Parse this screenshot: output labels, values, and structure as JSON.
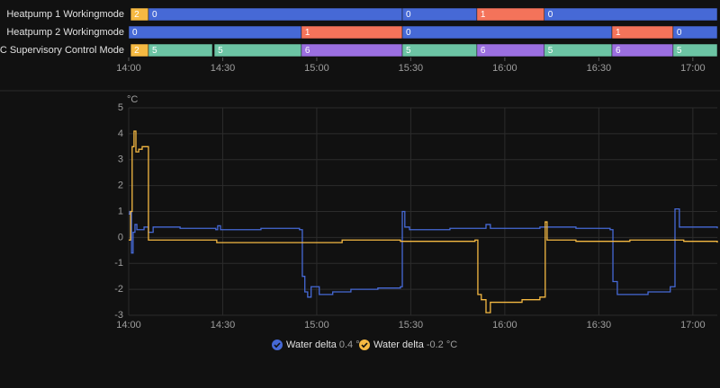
{
  "chart_data": [
    {
      "type": "timeline",
      "xlim": [
        0,
        187.8
      ],
      "xticks": [
        {
          "value": 0,
          "label": "14:00"
        },
        {
          "value": 30,
          "label": "14:30"
        },
        {
          "value": 60,
          "label": "15:00"
        },
        {
          "value": 90,
          "label": "15:30"
        },
        {
          "value": 120,
          "label": "16:00"
        },
        {
          "value": 150,
          "label": "16:30"
        },
        {
          "value": 180,
          "label": "17:00"
        }
      ],
      "rows": [
        {
          "label": "Heatpump 1 Workingmode",
          "segments": [
            {
              "state": "2",
              "start": 0.6,
              "end": 6.3,
              "color": "#f5b942"
            },
            {
              "state": "0",
              "start": 6.3,
              "end": 87.3,
              "color": "#4669d6"
            },
            {
              "state": "0",
              "start": 87.3,
              "end": 111.1,
              "color": "#4669d6"
            },
            {
              "state": "1",
              "start": 111.1,
              "end": 132.6,
              "color": "#f4735a"
            },
            {
              "state": "0",
              "start": 132.6,
              "end": 187.8,
              "color": "#4669d6"
            }
          ]
        },
        {
          "label": "Heatpump 2 Workingmode",
          "segments": [
            {
              "state": "0",
              "start": 0,
              "end": 55.1,
              "color": "#4669d6"
            },
            {
              "state": "1",
              "start": 55.1,
              "end": 87.3,
              "color": "#f4735a"
            },
            {
              "state": "0",
              "start": 87.3,
              "end": 154.2,
              "color": "#4669d6"
            },
            {
              "state": "1",
              "start": 154.2,
              "end": 173.7,
              "color": "#f4735a"
            },
            {
              "state": "0",
              "start": 173.7,
              "end": 187.8,
              "color": "#4669d6"
            }
          ]
        },
        {
          "label": "CIC QC Supervisory Control Mode",
          "segments": [
            {
              "state": "2",
              "start": 0.6,
              "end": 6.3,
              "color": "#f5b942"
            },
            {
              "state": "5",
              "start": 6.3,
              "end": 26.7,
              "color": "#6cc4a4"
            },
            {
              "state": "5",
              "start": 27.3,
              "end": 55.1,
              "color": "#6cc4a4"
            },
            {
              "state": "6",
              "start": 55.1,
              "end": 87.3,
              "color": "#9b6fe0"
            },
            {
              "state": "5",
              "start": 87.3,
              "end": 111.1,
              "color": "#6cc4a4"
            },
            {
              "state": "6",
              "start": 111.1,
              "end": 132.6,
              "color": "#9b6fe0"
            },
            {
              "state": "5",
              "start": 132.6,
              "end": 154.2,
              "color": "#6cc4a4"
            },
            {
              "state": "6",
              "start": 154.2,
              "end": 173.7,
              "color": "#9b6fe0"
            },
            {
              "state": "5",
              "start": 173.7,
              "end": 187.8,
              "color": "#6cc4a4"
            }
          ]
        }
      ]
    },
    {
      "type": "line",
      "y_unit": "°C",
      "xlim": [
        0,
        187.8
      ],
      "ylim": [
        -3,
        5
      ],
      "yticks": [
        -3,
        -2,
        -1,
        0,
        1,
        2,
        3,
        4,
        5
      ],
      "xticks": [
        {
          "value": 0,
          "label": "14:00"
        },
        {
          "value": 30,
          "label": "14:30"
        },
        {
          "value": 60,
          "label": "15:00"
        },
        {
          "value": 90,
          "label": "15:30"
        },
        {
          "value": 120,
          "label": "16:00"
        },
        {
          "value": 150,
          "label": "16:30"
        },
        {
          "value": 180,
          "label": "17:00"
        }
      ],
      "grid": true,
      "series": [
        {
          "name": "Water delta",
          "legend_value": "0.4 °C",
          "color": "#4669d6",
          "x": [
            0,
            0.3,
            0.9,
            1.4,
            2.0,
            2.6,
            4.9,
            6.3,
            7.8,
            16.4,
            27.8,
            28.4,
            29.3,
            42.2,
            54.5,
            55.4,
            56.2,
            57.1,
            58.2,
            60.8,
            65.1,
            70.9,
            79.5,
            86.7,
            87.3,
            88.1,
            89.6,
            102.5,
            114.0,
            115.4,
            131.2,
            142.7,
            153.6,
            154.5,
            155.9,
            159.9,
            165.7,
            172.8,
            173.7,
            174.3,
            175.7,
            187.8
          ],
          "values": [
            0.9,
            1.0,
            -0.6,
            0.2,
            0.5,
            0.3,
            0.4,
            0.2,
            0.4,
            0.35,
            0.3,
            0.45,
            0.3,
            0.35,
            0.3,
            -1.5,
            -2.1,
            -2.3,
            -1.9,
            -2.2,
            -2.1,
            -2.0,
            -1.95,
            -1.9,
            1.0,
            0.4,
            0.3,
            0.35,
            0.5,
            0.35,
            0.4,
            0.35,
            0.3,
            -1.7,
            -2.2,
            -2.2,
            -2.1,
            -1.9,
            -1.9,
            1.1,
            0.4,
            0.35
          ]
        },
        {
          "name": "Water delta",
          "legend_value": "-0.2 °C",
          "color": "#f5b942",
          "x": [
            0,
            0.6,
            1.1,
            1.7,
            2.3,
            3.2,
            4.3,
            5.7,
            6.3,
            7.8,
            27.8,
            28.1,
            45.1,
            62.3,
            68.1,
            86.7,
            110.5,
            111.4,
            112.5,
            114.0,
            115.4,
            119.7,
            125.5,
            131.2,
            132.1,
            132.9,
            133.5,
            142.7,
            159.9,
            177.1,
            187.8
          ],
          "values": [
            -0.1,
            1.0,
            3.5,
            4.1,
            3.3,
            3.4,
            3.5,
            3.5,
            -0.1,
            -0.1,
            -0.1,
            -0.2,
            -0.2,
            -0.2,
            -0.1,
            -0.15,
            -0.1,
            -2.2,
            -2.4,
            -2.9,
            -2.5,
            -2.5,
            -2.4,
            -2.3,
            -2.3,
            0.6,
            -0.1,
            -0.15,
            -0.1,
            -0.15,
            -0.2
          ]
        }
      ]
    }
  ]
}
